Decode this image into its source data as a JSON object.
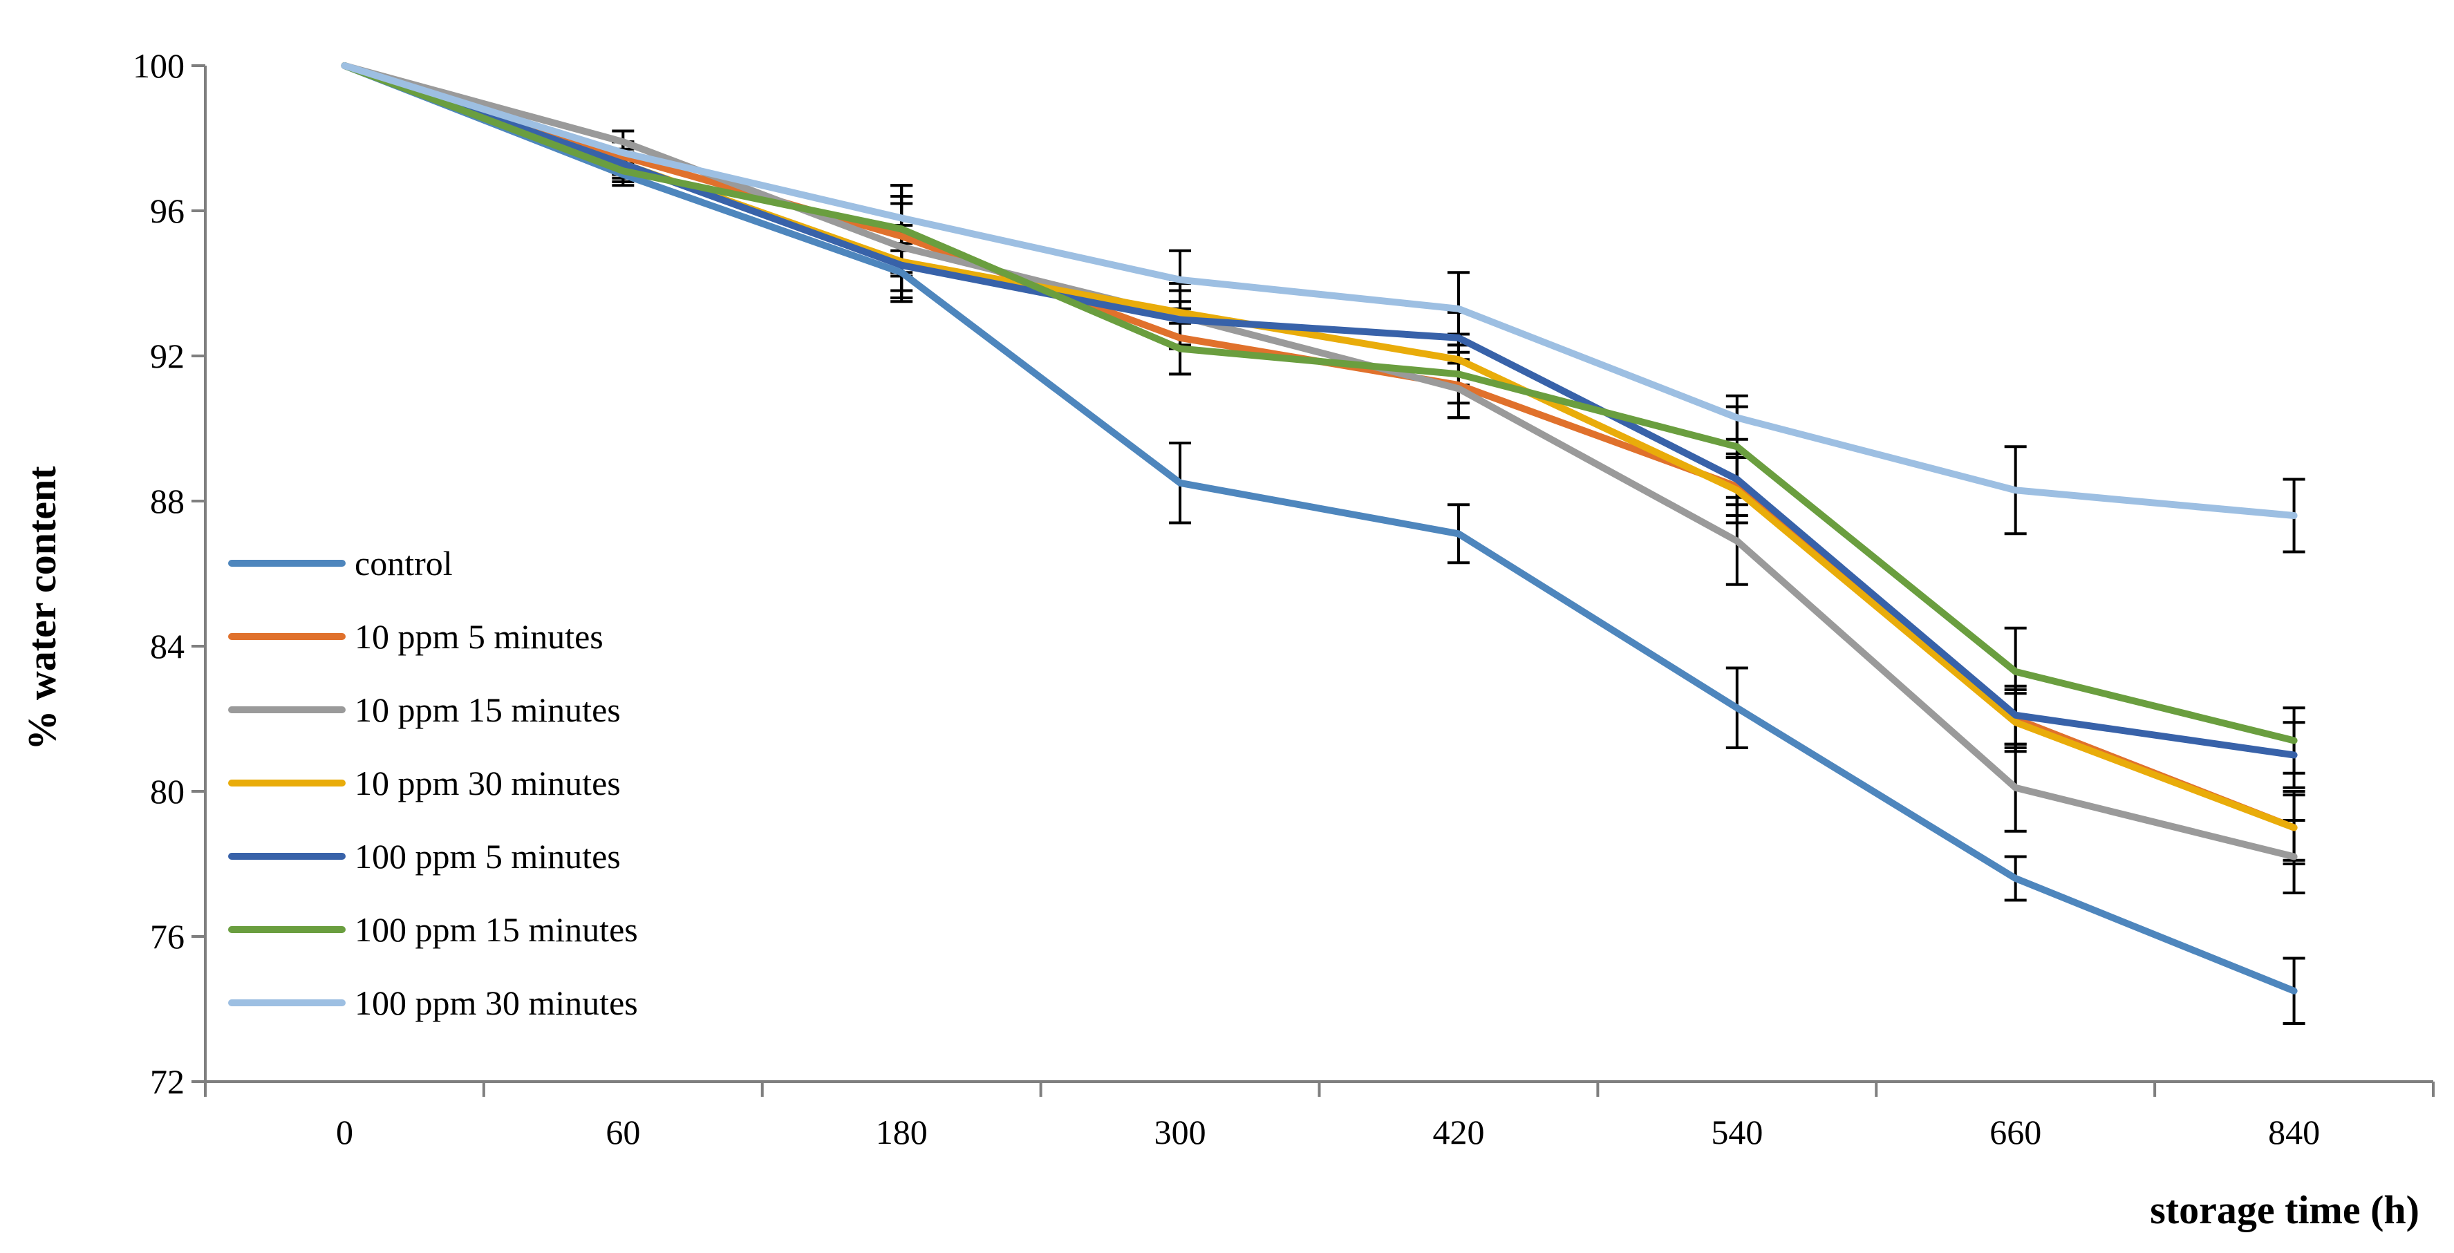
{
  "chart_data": {
    "type": "line",
    "title": "",
    "xlabel": "storage time (h)",
    "ylabel": "% water content",
    "categories": [
      "0",
      "60",
      "180",
      "300",
      "420",
      "540",
      "660",
      "840"
    ],
    "ylim": [
      72,
      100
    ],
    "yticks": [
      72,
      76,
      80,
      84,
      88,
      92,
      96,
      100
    ],
    "grid": false,
    "legend_position": "left",
    "series": [
      {
        "name": "control",
        "color": "#4E86BD",
        "values": [
          100,
          97.0,
          94.3,
          88.5,
          87.1,
          82.3,
          77.6,
          74.5
        ],
        "errors": [
          0,
          0.3,
          0.8,
          1.1,
          0.8,
          1.1,
          0.6,
          0.9
        ]
      },
      {
        "name": "10 ppm 5 minutes",
        "color": "#E0712C",
        "values": [
          100,
          97.5,
          95.3,
          92.5,
          91.2,
          88.4,
          82.0,
          79.0
        ],
        "errors": [
          0,
          0.4,
          1.1,
          1.0,
          0.9,
          0.8,
          0.8,
          1.0
        ]
      },
      {
        "name": "10 ppm 15 minutes",
        "color": "#9A9A9A",
        "values": [
          100,
          97.9,
          95.0,
          93.1,
          91.1,
          86.9,
          80.1,
          78.2
        ],
        "errors": [
          0,
          0.3,
          1.2,
          0.9,
          0.8,
          1.2,
          1.2,
          1.0
        ]
      },
      {
        "name": "10 ppm 30 minutes",
        "color": "#E9AC0A",
        "values": [
          100,
          97.3,
          94.6,
          93.2,
          91.9,
          88.3,
          81.9,
          79.0
        ],
        "errors": [
          0,
          0.3,
          1.0,
          0.9,
          0.7,
          0.9,
          0.8,
          0.9
        ]
      },
      {
        "name": "100 ppm 5 minutes",
        "color": "#3862A9",
        "values": [
          100,
          97.3,
          94.5,
          93.0,
          92.5,
          88.6,
          82.1,
          81.0
        ],
        "errors": [
          0,
          0.4,
          0.9,
          0.8,
          0.7,
          0.7,
          0.8,
          0.9
        ]
      },
      {
        "name": "100 ppm 15 minutes",
        "color": "#6A9E3F",
        "values": [
          100,
          97.1,
          95.5,
          92.2,
          91.5,
          89.5,
          83.3,
          81.4
        ],
        "errors": [
          0,
          0.3,
          1.2,
          0.7,
          0.8,
          1.1,
          1.2,
          0.9
        ]
      },
      {
        "name": "100 ppm 30 minutes",
        "color": "#9DBFE2",
        "values": [
          100,
          97.6,
          95.8,
          94.1,
          93.3,
          90.3,
          88.3,
          87.6
        ],
        "errors": [
          0,
          0.3,
          0.9,
          0.8,
          1.0,
          0.6,
          1.2,
          1.0
        ]
      }
    ]
  }
}
